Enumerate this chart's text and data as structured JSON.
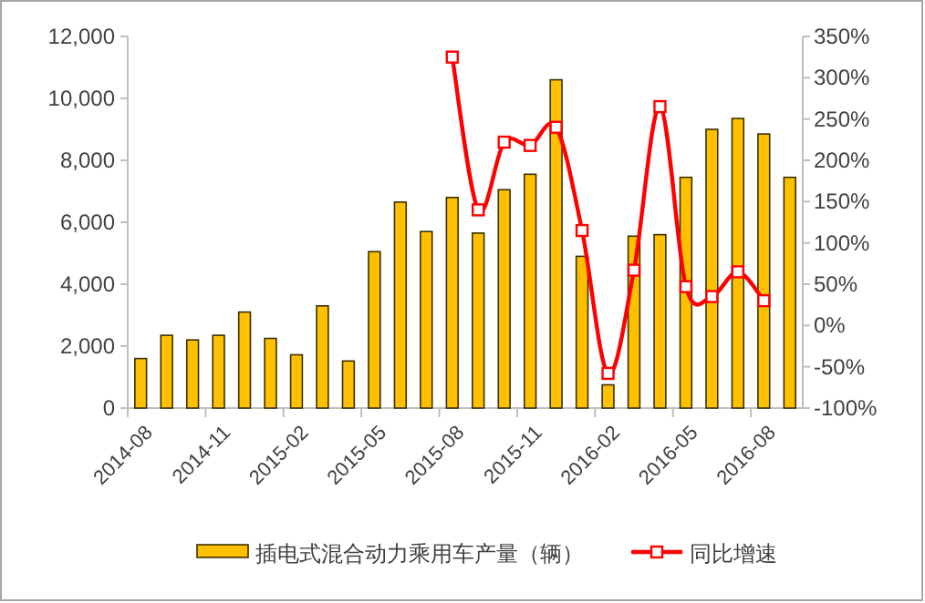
{
  "chart_data": {
    "type": "bar",
    "categories": [
      "2014-08",
      null,
      null,
      "2014-11",
      null,
      null,
      "2015-02",
      null,
      null,
      "2015-05",
      null,
      null,
      "2015-08",
      null,
      null,
      "2015-11",
      null,
      null,
      "2016-02",
      null,
      null,
      "2016-05",
      null,
      null,
      "2016-08",
      null
    ],
    "series": [
      {
        "name": "插电式混合动力乘用车产量（辆）",
        "type": "bar",
        "color": "#ffc000",
        "values": [
          1600,
          2350,
          2200,
          2350,
          3100,
          2250,
          1720,
          3300,
          1520,
          5050,
          6650,
          5700,
          6800,
          5650,
          7050,
          7550,
          10600,
          4900,
          750,
          5550,
          5600,
          7450,
          9000,
          9350,
          8850,
          7450
        ]
      },
      {
        "name": "同比增速",
        "type": "line",
        "axis": "y2",
        "color": "#ff0000",
        "marker": "square",
        "values": [
          null,
          null,
          null,
          null,
          null,
          null,
          null,
          null,
          null,
          null,
          null,
          null,
          325,
          140,
          222,
          218,
          240,
          115,
          -58,
          67,
          265,
          47,
          35,
          65,
          30,
          null
        ]
      }
    ],
    "ylim": [
      0,
      12000
    ],
    "yticks": [
      0,
      {
        "value": 2000,
        "label": "2,000"
      },
      {
        "value": 4000,
        "label": "4,000"
      },
      {
        "value": 6000,
        "label": "6,000"
      },
      {
        "value": 8000,
        "label": "8,000"
      },
      {
        "value": 10000,
        "label": "10,000"
      },
      {
        "value": 12000,
        "label": "12,000"
      }
    ],
    "y2lim": [
      -100,
      350
    ],
    "y2ticks": [
      {
        "value": -100,
        "label": "-100%"
      },
      {
        "value": -50,
        "label": "-50%"
      },
      {
        "value": 0,
        "label": "0%"
      },
      {
        "value": 50,
        "label": "50%"
      },
      {
        "value": 100,
        "label": "100%"
      },
      {
        "value": 150,
        "label": "150%"
      },
      {
        "value": 200,
        "label": "200%"
      },
      {
        "value": 250,
        "label": "250%"
      },
      {
        "value": 300,
        "label": "300%"
      },
      {
        "value": 350,
        "label": "350%"
      }
    ],
    "legend": "bottom"
  }
}
